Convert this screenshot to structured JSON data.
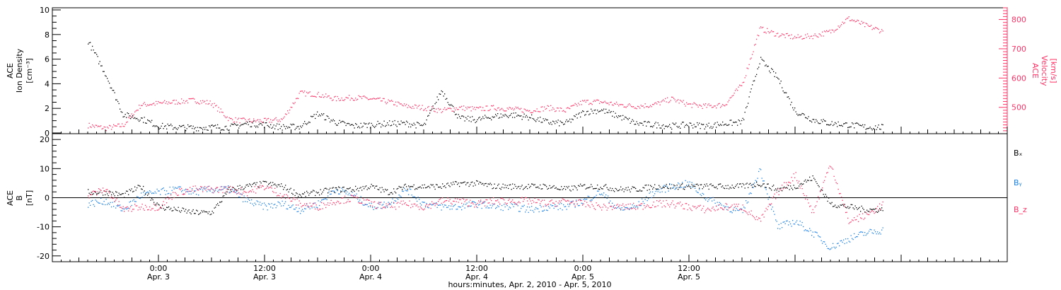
{
  "chart_data": [
    {
      "panel": "plasma",
      "type": "scatter",
      "ylabel_left": [
        "ACE",
        "Ion Density",
        "[cm⁻³]"
      ],
      "ylabel_right": [
        "ACE",
        "Velocity",
        "[km/s]"
      ],
      "ylim_left": [
        0,
        10
      ],
      "yticks_left": [
        "0",
        "2",
        "4",
        "6",
        "8",
        "10"
      ],
      "ylim_right": [
        410,
        840
      ],
      "yticks_right": [
        "500",
        "600",
        "700",
        "800"
      ],
      "series": [
        {
          "axis": "left",
          "color": "#000000",
          "x": [
            -8,
            -6,
            -4,
            -2,
            0,
            2,
            4,
            6,
            8,
            10,
            12,
            14,
            16,
            18,
            20,
            22,
            24,
            26,
            28,
            30,
            32,
            34,
            36,
            38,
            40,
            42,
            44,
            46,
            48,
            50,
            52,
            54,
            56,
            58,
            60,
            62,
            64,
            66,
            68,
            70,
            72,
            74,
            76,
            78,
            80,
            82
          ],
          "values": [
            7.5,
            4.8,
            1.5,
            1.2,
            0.6,
            0.5,
            0.45,
            0.5,
            0.5,
            0.8,
            0.7,
            0.5,
            0.55,
            1.6,
            0.9,
            0.6,
            0.7,
            0.8,
            0.8,
            0.6,
            3.5,
            1.2,
            1.1,
            1.4,
            1.5,
            1.3,
            0.9,
            0.8,
            1.7,
            1.9,
            1.4,
            0.8,
            0.7,
            0.6,
            0.7,
            0.6,
            0.8,
            0.9,
            6,
            4.5,
            1.8,
            1.1,
            0.8,
            0.7,
            0.5,
            0.5
          ]
        },
        {
          "axis": "right",
          "color": "#ff3366",
          "x": [
            -8,
            -6,
            -4,
            -2,
            0,
            2,
            4,
            6,
            8,
            10,
            12,
            14,
            16,
            18,
            20,
            22,
            24,
            26,
            28,
            30,
            32,
            34,
            36,
            38,
            40,
            42,
            44,
            46,
            48,
            50,
            52,
            54,
            56,
            58,
            60,
            62,
            64,
            66,
            68,
            70,
            72,
            74,
            76,
            78,
            80,
            82
          ],
          "values": [
            440,
            430,
            440,
            510,
            515,
            520,
            525,
            515,
            460,
            455,
            455,
            460,
            550,
            545,
            530,
            535,
            530,
            520,
            505,
            500,
            490,
            500,
            495,
            500,
            495,
            490,
            500,
            490,
            520,
            520,
            510,
            505,
            510,
            530,
            510,
            505,
            510,
            580,
            770,
            750,
            740,
            745,
            760,
            805,
            780,
            760
          ]
        }
      ]
    },
    {
      "panel": "magnetic",
      "type": "scatter",
      "ylabel_left": [
        "ACE",
        "B",
        "[nT]"
      ],
      "ylim": [
        -22,
        22
      ],
      "yticks": [
        "-20",
        "-10",
        "0",
        "10",
        "20"
      ],
      "legend": [
        "Bₓ",
        "Bᵧ",
        "B_z"
      ],
      "series": [
        {
          "name": "Bₓ",
          "color": "#000000",
          "x": [
            -8,
            -6,
            -4,
            -2,
            0,
            2,
            4,
            6,
            8,
            10,
            12,
            14,
            16,
            18,
            20,
            22,
            24,
            26,
            28,
            30,
            32,
            34,
            36,
            38,
            40,
            42,
            44,
            46,
            48,
            50,
            52,
            54,
            56,
            58,
            60,
            62,
            64,
            66,
            68,
            70,
            72,
            74,
            76,
            78,
            80,
            82
          ],
          "values": [
            2,
            2,
            1,
            4,
            -3,
            -4,
            -5,
            -5,
            3,
            4,
            5,
            4,
            1,
            2,
            3,
            3,
            4,
            2,
            4,
            4,
            4,
            5,
            5,
            4,
            4,
            4,
            4,
            3,
            4,
            4,
            3,
            3,
            4,
            4,
            4,
            4,
            4,
            4,
            5,
            3,
            4,
            7,
            -2,
            -3,
            -4,
            -4
          ]
        },
        {
          "name": "Bᵧ",
          "color": "#1a80e6",
          "x": [
            -8,
            -6,
            -4,
            -2,
            0,
            2,
            4,
            6,
            8,
            10,
            12,
            14,
            16,
            18,
            20,
            22,
            24,
            26,
            28,
            30,
            32,
            34,
            36,
            38,
            40,
            42,
            44,
            46,
            48,
            50,
            52,
            54,
            56,
            58,
            60,
            62,
            64,
            66,
            68,
            70,
            72,
            74,
            76,
            78,
            80,
            82
          ],
          "values": [
            -2,
            -1,
            -4,
            1,
            2,
            3,
            2,
            3,
            3,
            -1,
            -3,
            -2,
            -4,
            -2,
            3,
            1,
            -3,
            -2,
            3,
            -2,
            -3,
            -3,
            -2,
            -3,
            -3,
            -4,
            -3,
            -3,
            -1,
            2,
            -4,
            -3,
            2,
            4,
            5,
            0,
            -3,
            -5,
            10,
            -10,
            -8,
            -12,
            -17,
            -14,
            -12,
            -11
          ]
        },
        {
          "name": "B_z",
          "color": "#ff3366",
          "x": [
            -8,
            -6,
            -4,
            -2,
            0,
            2,
            4,
            6,
            8,
            10,
            12,
            14,
            16,
            18,
            20,
            22,
            24,
            26,
            28,
            30,
            32,
            34,
            36,
            38,
            40,
            42,
            44,
            46,
            48,
            50,
            52,
            54,
            56,
            58,
            60,
            62,
            64,
            66,
            68,
            70,
            72,
            74,
            76,
            78,
            80,
            82
          ],
          "values": [
            1,
            3,
            -4,
            -3,
            -3,
            2,
            3,
            3,
            3,
            2,
            4,
            1,
            -2,
            -3,
            -1,
            0,
            -2,
            -3,
            -2,
            -3,
            -1,
            -1,
            -2,
            -1,
            -1,
            -1,
            -2,
            -1,
            -2,
            -3,
            -3,
            -3,
            -2,
            -2,
            -3,
            -4,
            -3,
            -3,
            -8,
            2,
            8,
            -5,
            12,
            -8,
            -6,
            -2
          ]
        }
      ]
    }
  ],
  "x_axis": {
    "ticks": [
      {
        "time": "0:00",
        "date": "Apr. 3"
      },
      {
        "time": "12:00",
        "date": "Apr. 3"
      },
      {
        "time": "0:00",
        "date": "Apr. 4"
      },
      {
        "time": "12:00",
        "date": "Apr. 4"
      },
      {
        "time": "0:00",
        "date": "Apr. 5"
      },
      {
        "time": "12:00",
        "date": "Apr. 5"
      }
    ],
    "label": "hours:minutes, Apr.  2, 2010 - Apr.  5, 2010"
  }
}
